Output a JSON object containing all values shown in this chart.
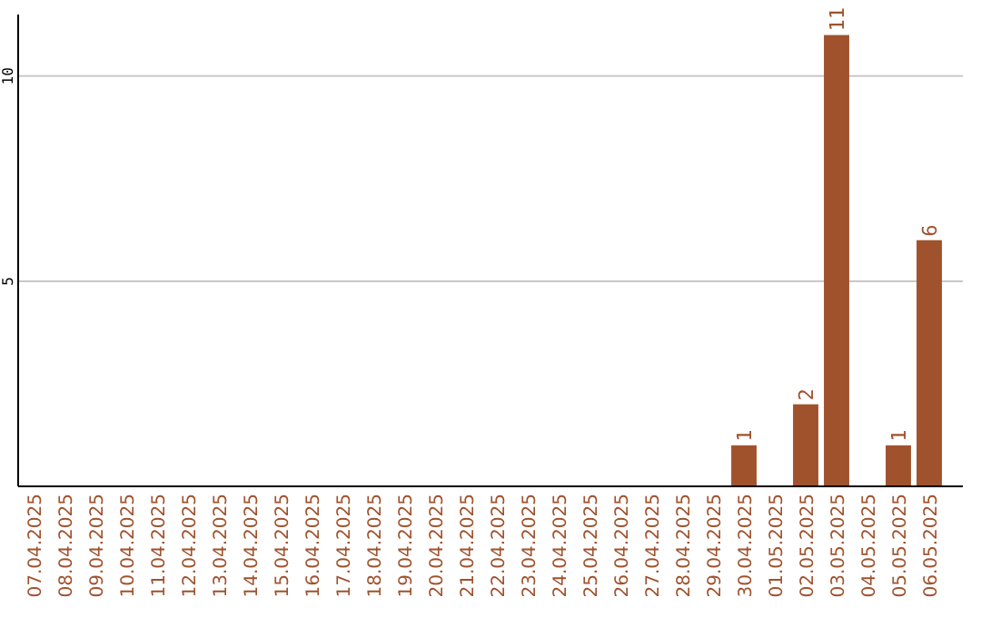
{
  "chart_data": {
    "type": "bar",
    "categories": [
      "07.04.2025",
      "08.04.2025",
      "09.04.2025",
      "10.04.2025",
      "11.04.2025",
      "12.04.2025",
      "13.04.2025",
      "14.04.2025",
      "15.04.2025",
      "16.04.2025",
      "17.04.2025",
      "18.04.2025",
      "19.04.2025",
      "20.04.2025",
      "21.04.2025",
      "22.04.2025",
      "23.04.2025",
      "24.04.2025",
      "25.04.2025",
      "26.04.2025",
      "27.04.2025",
      "28.04.2025",
      "29.04.2025",
      "30.04.2025",
      "01.05.2025",
      "02.05.2025",
      "03.05.2025",
      "04.05.2025",
      "05.05.2025",
      "06.05.2025"
    ],
    "values": [
      0,
      0,
      0,
      0,
      0,
      0,
      0,
      0,
      0,
      0,
      0,
      0,
      0,
      0,
      0,
      0,
      0,
      0,
      0,
      0,
      0,
      0,
      0,
      1,
      0,
      2,
      11,
      0,
      1,
      6
    ],
    "value_labels": [
      null,
      null,
      null,
      null,
      null,
      null,
      null,
      null,
      null,
      null,
      null,
      null,
      null,
      null,
      null,
      null,
      null,
      null,
      null,
      null,
      null,
      null,
      null,
      "1",
      null,
      "2",
      "11",
      null,
      "1",
      "6"
    ],
    "color": "#a0522d",
    "ylim": [
      0,
      11.5
    ],
    "yticks": [
      5,
      10
    ],
    "grid": "y"
  }
}
